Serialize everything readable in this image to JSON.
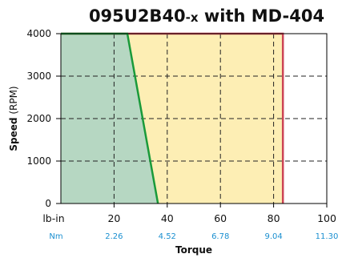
{
  "chart_data": {
    "type": "area",
    "title_main": "095U2B40",
    "title_suffix": "-x",
    "title_tail": " with MD-404",
    "xlabel": "Torque",
    "ylabel_bold": "Speed",
    "ylabel_unit": " (RPM)",
    "x_unit_primary": "lb-in",
    "x_unit_secondary": "Nm",
    "xlim": [
      0,
      100
    ],
    "ylim": [
      0,
      4000
    ],
    "x_ticks": [
      20,
      40,
      60,
      80,
      100
    ],
    "x_tick_labels": [
      "20",
      "40",
      "60",
      "80",
      "100"
    ],
    "x_ticks_nm_labels": [
      "2.26",
      "4.52",
      "6.78",
      "9.04",
      "11.30"
    ],
    "y_ticks": [
      0,
      1000,
      2000,
      3000,
      4000
    ],
    "y_tick_labels": [
      "0",
      "1000",
      "2000",
      "3000",
      "4000"
    ],
    "grid": true,
    "regions": [
      {
        "kind": "intermittent",
        "fill": "#fdeeb4",
        "border": "#cc4455",
        "points": [
          [
            0,
            0
          ],
          [
            0,
            4000
          ],
          [
            83.5,
            4000
          ],
          [
            83.5,
            0
          ]
        ]
      },
      {
        "kind": "continuous",
        "fill": "#b6d7c2",
        "border": "#1a9a3a",
        "points": [
          [
            0,
            0
          ],
          [
            0,
            4000
          ],
          [
            25,
            4000
          ],
          [
            36.5,
            0
          ]
        ]
      }
    ],
    "colors": {
      "grid": "#222222",
      "axis": "#000000",
      "nm_ticks": "#1a8fd0",
      "continuous_line": "#1a9a3a",
      "intermittent_line": "#cc4455"
    }
  }
}
